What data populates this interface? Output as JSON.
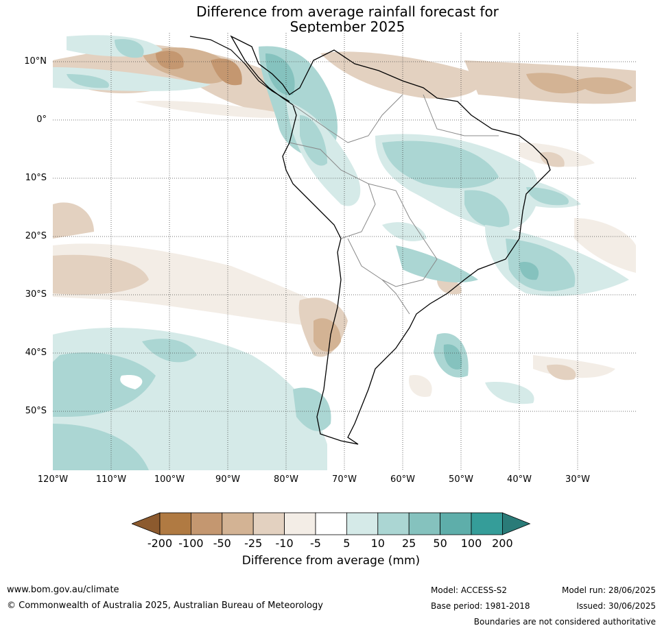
{
  "title": {
    "line1": "Difference from average rainfall forecast for",
    "line2": "September 2025"
  },
  "map": {
    "lat_labels": [
      "10°N",
      "0°",
      "10°S",
      "20°S",
      "30°S",
      "40°S",
      "50°S"
    ],
    "lon_labels": [
      "120°W",
      "110°W",
      "100°W",
      "90°W",
      "80°W",
      "70°W",
      "60°W",
      "50°W",
      "40°W",
      "30°W"
    ]
  },
  "colorbar": {
    "labels": [
      "-200",
      "-100",
      "-50",
      "-25",
      "-10",
      "-5",
      "5",
      "10",
      "25",
      "50",
      "100",
      "200"
    ],
    "colors": [
      "#8c5a2e",
      "#b07a42",
      "#c49770",
      "#d3b394",
      "#e3d1c0",
      "#f3ede6",
      "#ffffff",
      "#d5eae8",
      "#abd6d3",
      "#85c2be",
      "#5eaeaa",
      "#359d99",
      "#2a7b78"
    ],
    "title": "Difference from average (mm)"
  },
  "footer": {
    "website": "www.bom.gov.au/climate",
    "copyright": "© Commonwealth of Australia 2025, Australian Bureau of Meteorology",
    "model": "Model: ACCESS-S2",
    "base_period": "Base period: 1981-2018",
    "model_run": "Model run: 28/06/2025",
    "issued": "Issued: 30/06/2025",
    "disclaimer": "Boundaries are not considered authoritative"
  }
}
